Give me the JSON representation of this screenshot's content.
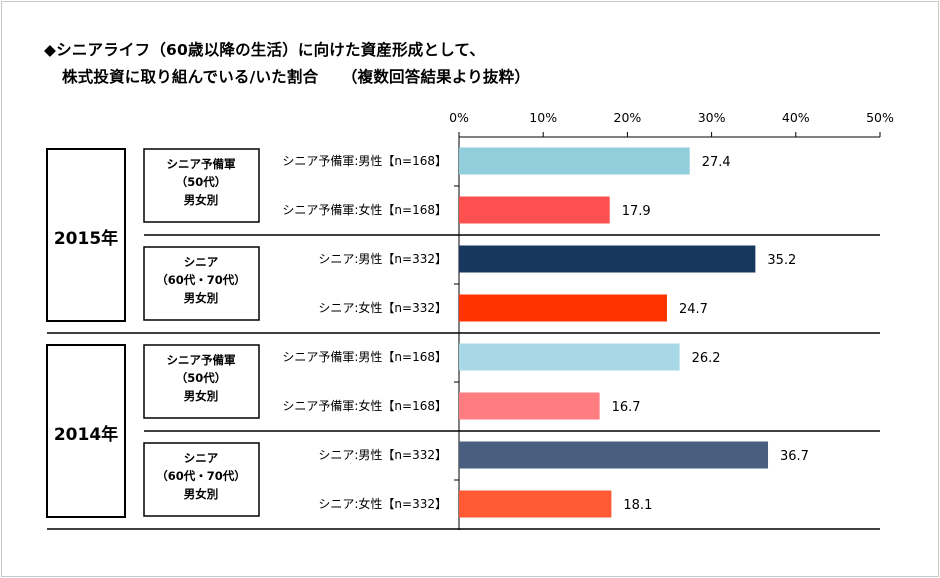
{
  "title": {
    "line1": "◆シニアライフ（60歳以降の生活）に向けた資産形成として、",
    "line2": "株式投資に取り組んでいる/いた割合　　（複数回答結果より抜粋）"
  },
  "chart_data": {
    "type": "bar",
    "orientation": "horizontal",
    "xlim": [
      0,
      50
    ],
    "x_ticks": [
      "0%",
      "10%",
      "20%",
      "30%",
      "40%",
      "50%"
    ],
    "grid": false,
    "groups": [
      {
        "year": "2015年",
        "subgroups": [
          {
            "label_lines": [
              "シニア予備軍",
              "（50代）",
              "男女別"
            ],
            "bars": [
              {
                "category": "シニア予備軍:男性【n=168】",
                "value": 27.4,
                "color": "#92CDDC"
              },
              {
                "category": "シニア予備軍:女性【n=168】",
                "value": 17.9,
                "color": "#FF5050"
              }
            ]
          },
          {
            "label_lines": [
              "シニア",
              "（60代・70代）",
              "男女別"
            ],
            "bars": [
              {
                "category": "シニア:男性【n=332】",
                "value": 35.2,
                "color": "#17375E"
              },
              {
                "category": "シニア:女性【n=332】",
                "value": 24.7,
                "color": "#FF3300"
              }
            ]
          }
        ]
      },
      {
        "year": "2014年",
        "subgroups": [
          {
            "label_lines": [
              "シニア予備軍",
              "（50代）",
              "男女別"
            ],
            "bars": [
              {
                "category": "シニア予備軍:男性【n=168】",
                "value": 26.2,
                "color": "#A8D8E6"
              },
              {
                "category": "シニア予備軍:女性【n=168】",
                "value": 16.7,
                "color": "#FF7C80"
              }
            ]
          },
          {
            "label_lines": [
              "シニア",
              "（60代・70代）",
              "男女別"
            ],
            "bars": [
              {
                "category": "シニア:男性【n=332】",
                "value": 36.7,
                "color": "#4A5F80"
              },
              {
                "category": "シニア:女性【n=332】",
                "value": 18.1,
                "color": "#FF5A33"
              }
            ]
          }
        ]
      }
    ]
  }
}
